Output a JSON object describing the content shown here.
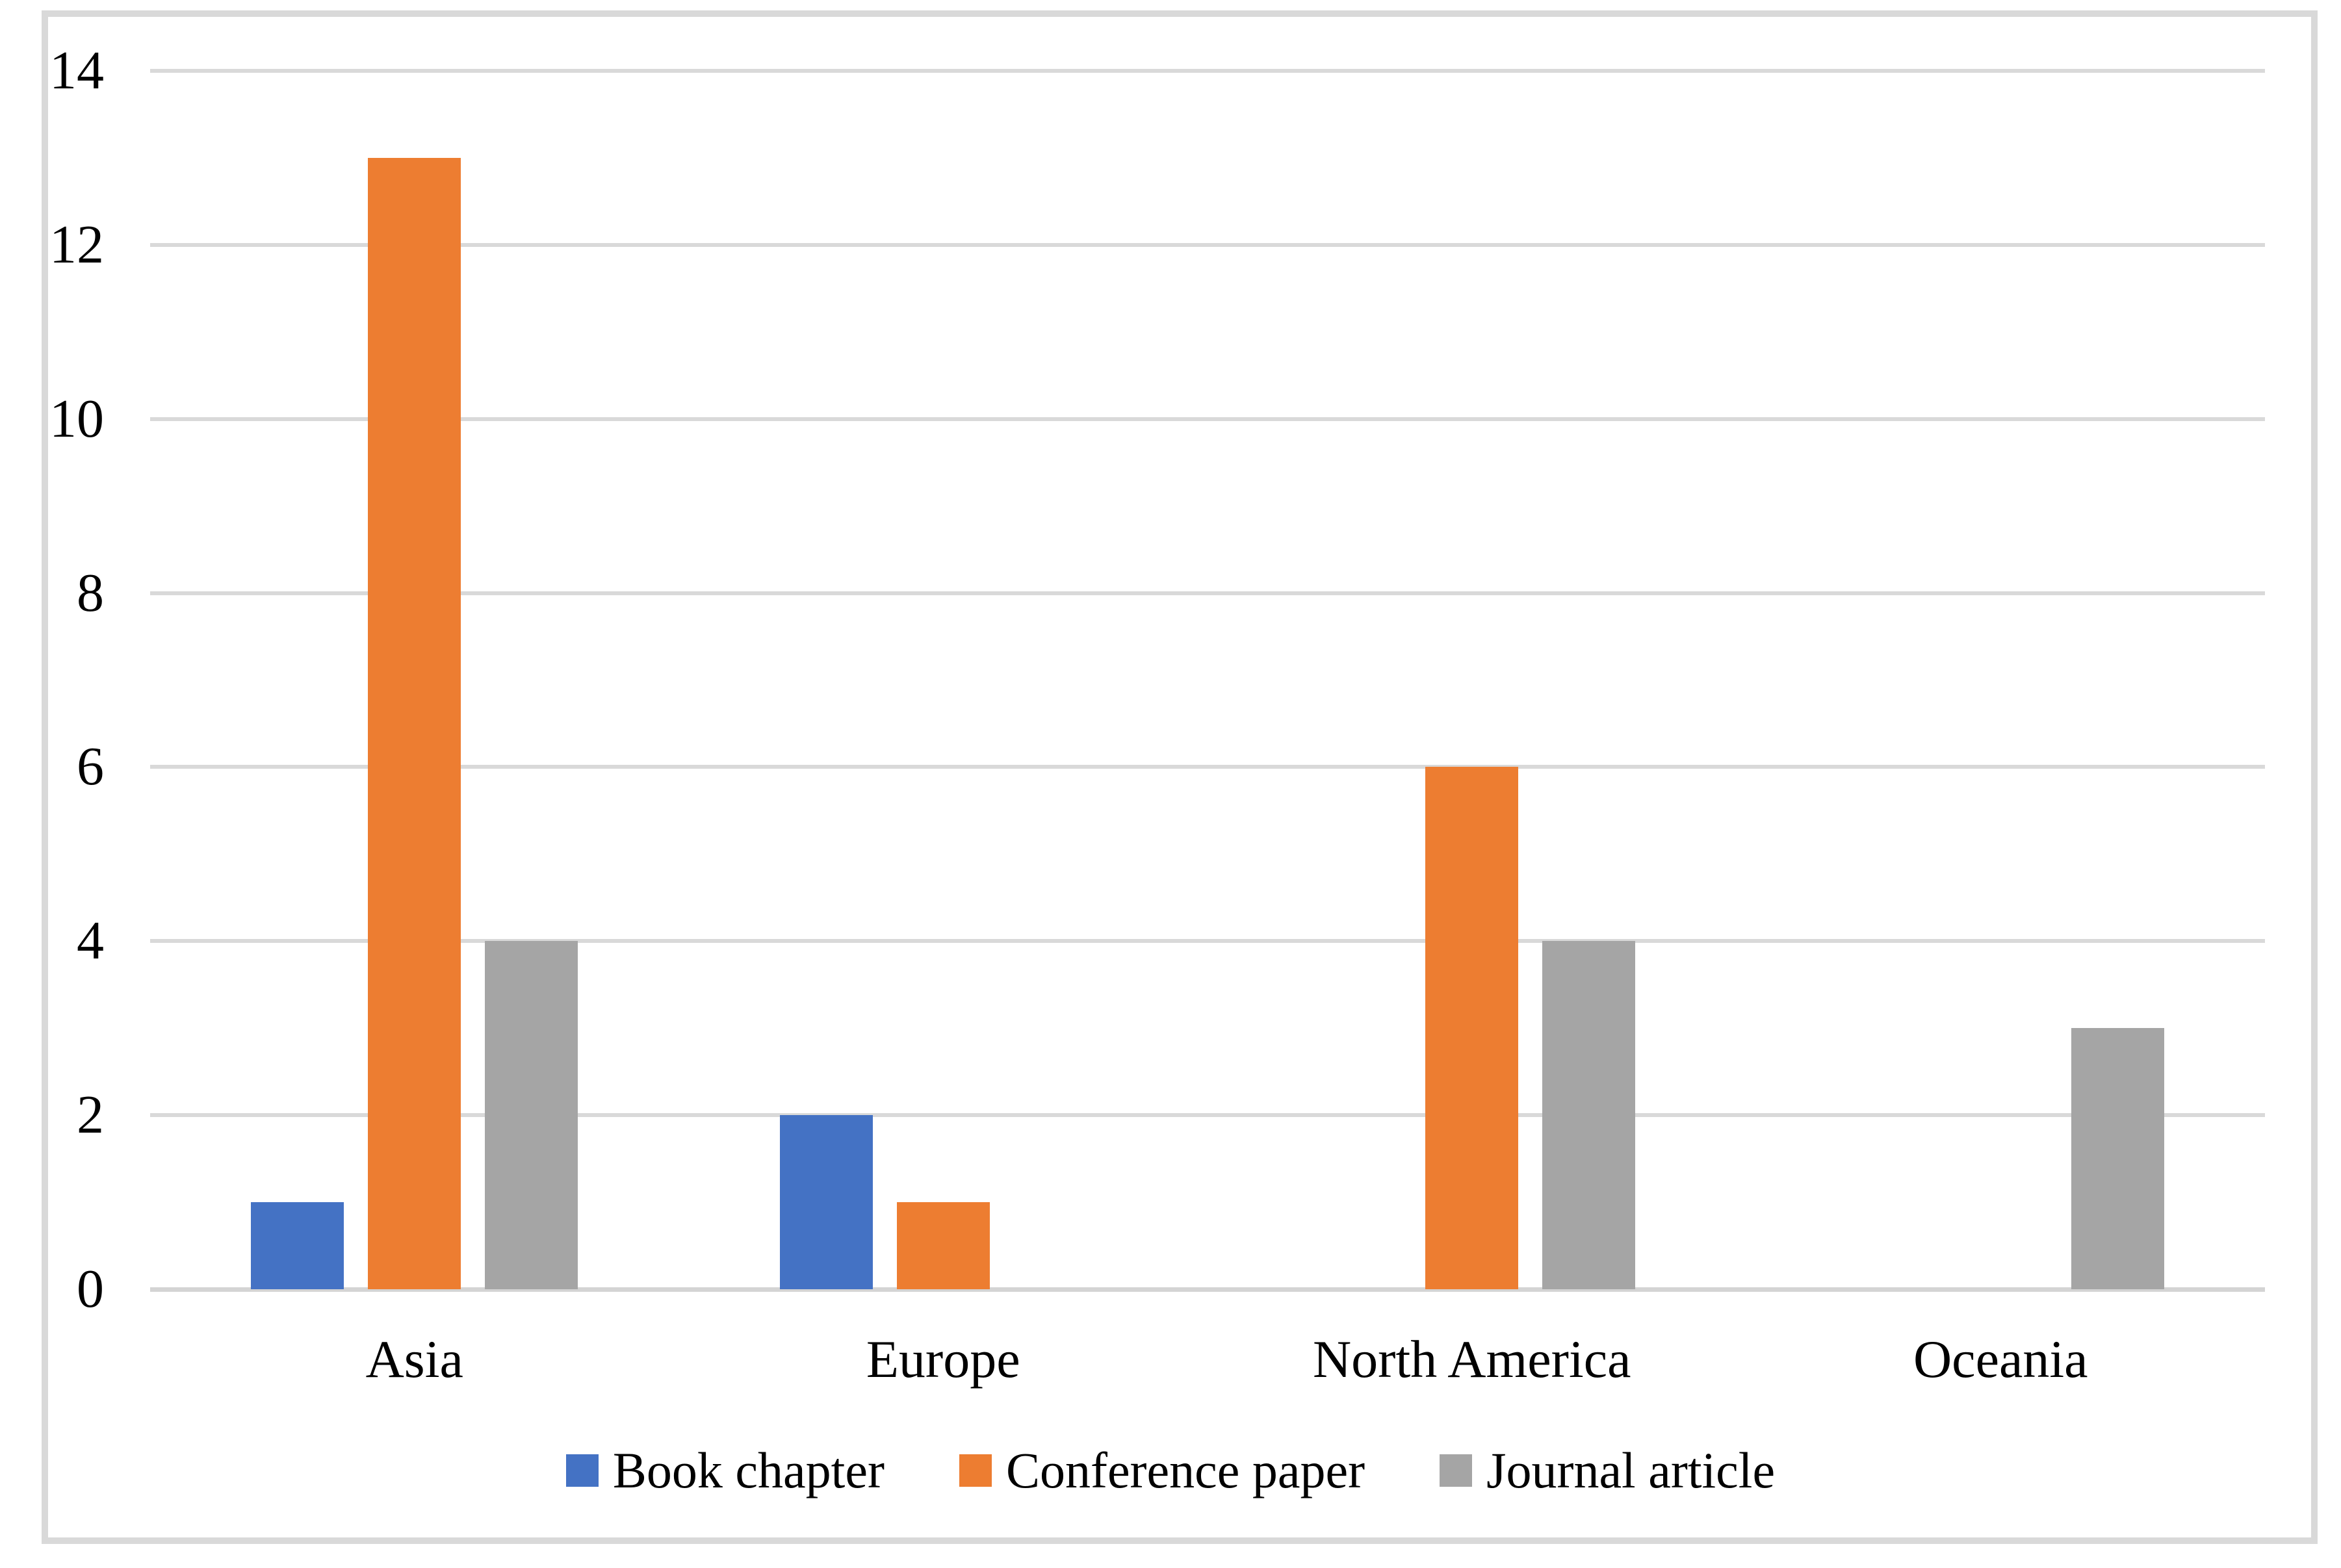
{
  "figure": {
    "background": "#FFFFFF",
    "frame_color": "#D9D9D9"
  },
  "chart_data": {
    "type": "bar",
    "title": "",
    "xlabel": "",
    "ylabel": "",
    "categories": [
      "Asia",
      "Europe",
      "North America",
      "Oceania"
    ],
    "series": [
      {
        "name": "Book chapter",
        "color": "#4472C4",
        "values": [
          1,
          2,
          0,
          0
        ]
      },
      {
        "name": "Conference paper",
        "color": "#ED7D31",
        "values": [
          13,
          1,
          6,
          0
        ]
      },
      {
        "name": "Journal article",
        "color": "#A5A5A5",
        "values": [
          4,
          0,
          4,
          3
        ]
      }
    ],
    "ylim": [
      0,
      14
    ],
    "yticks": [
      0,
      2,
      4,
      6,
      8,
      10,
      12,
      14
    ],
    "grid": "horizontal-only",
    "gridline_color": "#D9D9D9",
    "axis_line_color": "#D4D4D4",
    "text_color": "#000000",
    "legend_position": "bottom-center"
  }
}
